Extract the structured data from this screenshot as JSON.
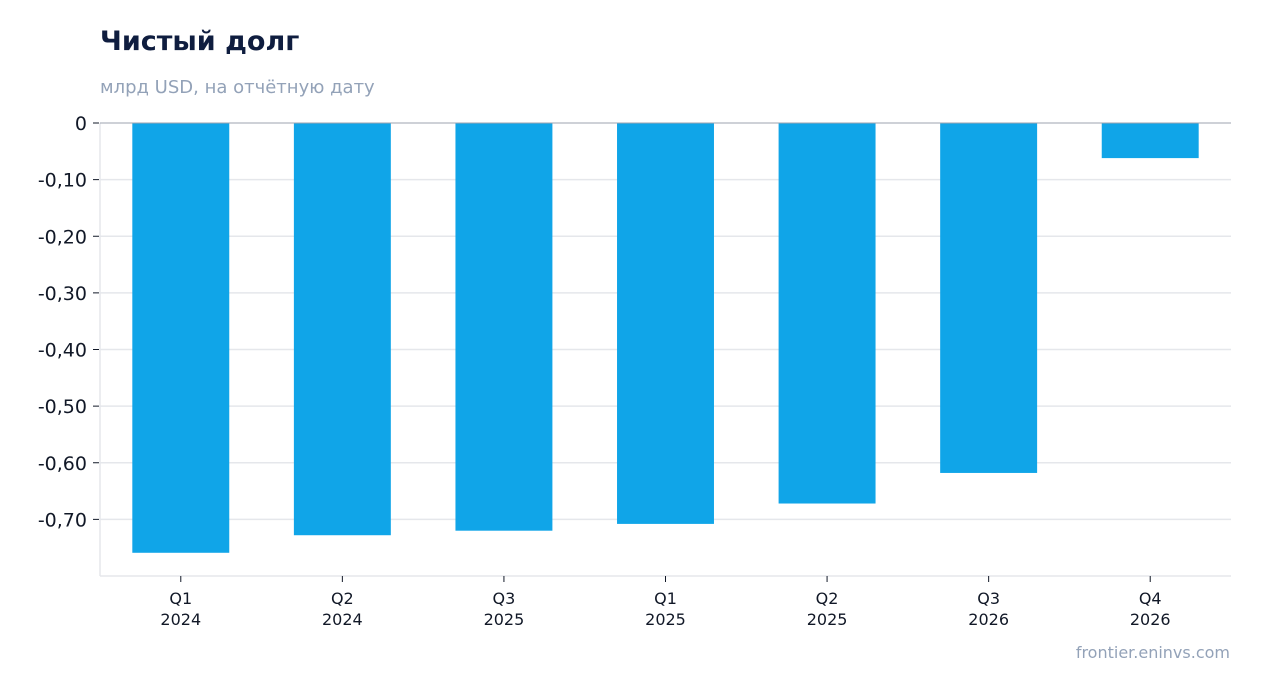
{
  "header": {
    "title": "Чистый долг",
    "subtitle": "млрд USD, на отчётную дату"
  },
  "footer": {
    "source": "frontier.eninvs.com"
  },
  "chart_data": {
    "type": "bar",
    "title": "Чистый долг",
    "subtitle": "млрд USD, на отчётную дату",
    "xlabel": "",
    "ylabel": "",
    "categories": [
      [
        "Q1",
        "2024"
      ],
      [
        "Q2",
        "2024"
      ],
      [
        "Q3",
        "2025"
      ],
      [
        "Q1",
        "2025"
      ],
      [
        "Q2",
        "2025"
      ],
      [
        "Q3",
        "2026"
      ],
      [
        "Q4",
        "2026"
      ]
    ],
    "values": [
      -0.759,
      -0.728,
      -0.72,
      -0.708,
      -0.672,
      -0.618,
      -0.062
    ],
    "ylim": [
      -0.8,
      0
    ],
    "yticks": [
      0,
      -0.1,
      -0.2,
      -0.3,
      -0.4,
      -0.5,
      -0.6,
      -0.7
    ],
    "ytick_labels": [
      "0",
      "-0,10",
      "-0,20",
      "-0,30",
      "-0,40",
      "-0,50",
      "-0,60",
      "-0,70"
    ],
    "grid": true,
    "bar_color": "#10a5e8",
    "grid_color": "#e5e7eb",
    "zero_line_color": "#9ca3af"
  }
}
